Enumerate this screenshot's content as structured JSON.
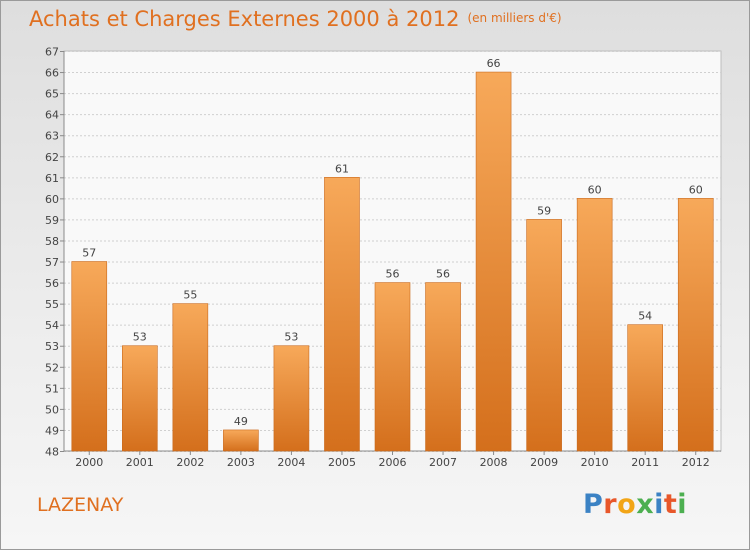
{
  "header": {
    "title": "Achats et Charges Externes 2000 à 2012",
    "unit": "(en milliers d'€)"
  },
  "footer": {
    "town": "LAZENAY",
    "brand": "Proxiti"
  },
  "colors": {
    "accent": "#e07020",
    "bar_top": "#f7a95a",
    "bar_bottom": "#d46f1c",
    "brand_letters": [
      "#3b82c4",
      "#e8572a",
      "#f2a516",
      "#4caf50",
      "#3b82c4",
      "#e8572a",
      "#4caf50"
    ]
  },
  "chart_data": {
    "type": "bar",
    "categories": [
      "2000",
      "2001",
      "2002",
      "2003",
      "2004",
      "2005",
      "2006",
      "2007",
      "2008",
      "2009",
      "2010",
      "2011",
      "2012"
    ],
    "values": [
      57,
      53,
      55,
      49,
      53,
      61,
      56,
      56,
      66,
      59,
      60,
      54,
      60
    ],
    "ylim": [
      48,
      67
    ],
    "yticks": [
      48,
      49,
      50,
      51,
      52,
      53,
      54,
      55,
      56,
      57,
      58,
      59,
      60,
      61,
      62,
      63,
      64,
      65,
      66,
      67
    ],
    "grid": true,
    "data_labels": true,
    "legend": "none"
  }
}
